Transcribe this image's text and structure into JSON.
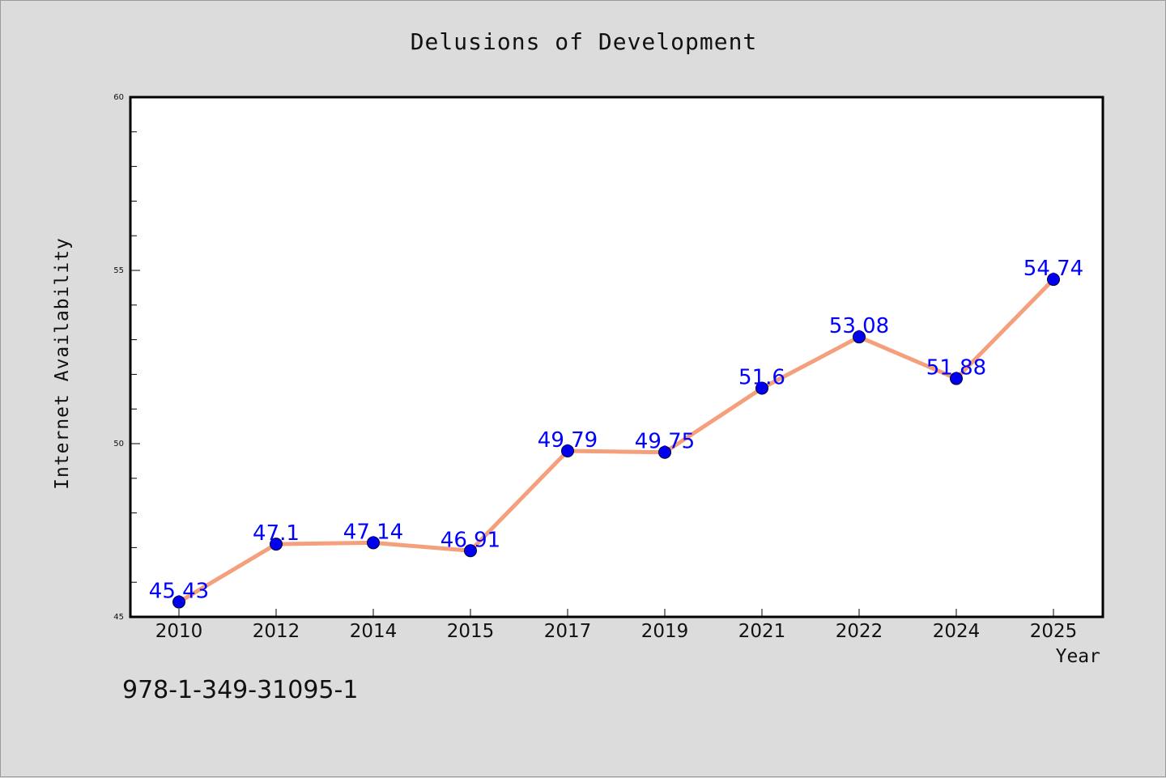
{
  "chart_data": {
    "type": "line",
    "title": "Delusions of Development",
    "xlabel": "Year",
    "ylabel": "Internet Availability",
    "categories": [
      "2010",
      "2012",
      "2014",
      "2015",
      "2017",
      "2019",
      "2021",
      "2022",
      "2024",
      "2025"
    ],
    "series": [
      {
        "values": [
          45.43,
          47.1,
          47.14,
          46.91,
          49.79,
          49.75,
          51.6,
          53.08,
          51.88,
          54.74
        ],
        "data_labels": [
          "45.43",
          "47.1",
          "47.14",
          "46.91",
          "49.79",
          "49.75",
          "51.6",
          "53.08",
          "51.88",
          "54.74"
        ],
        "line_color": "#f4a07c",
        "marker_color": "#0000ee"
      }
    ],
    "ylim": [
      45,
      60
    ],
    "yticks": [
      45,
      50,
      55,
      60
    ],
    "ytick_labels": [
      "45",
      "50",
      "55",
      "60"
    ],
    "grid": false,
    "label_color": "#0000ff"
  },
  "footer": {
    "isbn": "978-1-349-31095-1"
  }
}
